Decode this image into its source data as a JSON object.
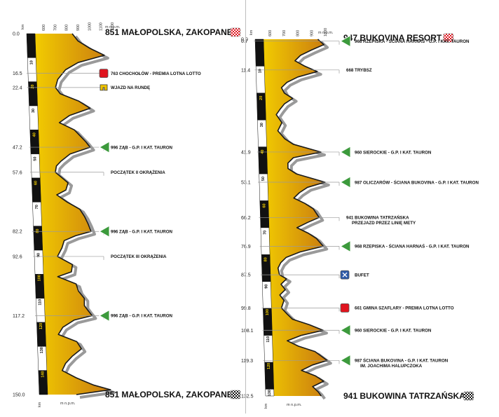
{
  "colors": {
    "profile_top": "#f4d000",
    "profile_bottom": "#c97a10",
    "shadow": "#9a9a9a",
    "outline": "#1a1a1a",
    "mountain_icon": "#3c9a3c",
    "sprint_icon": "#e0141e",
    "feed_icon": "#2d5aa8",
    "bonus_icon": "#f0c400"
  },
  "chart_data": [
    {
      "type": "area",
      "title": "",
      "xlabel": "km",
      "ylabel": "m n.p.m.",
      "ylim": [
        600,
        1200
      ],
      "xlim": [
        0,
        150
      ],
      "altitude_ticks": [
        "600",
        "700",
        "800",
        "900",
        "1000",
        "1100",
        "1200"
      ],
      "km_markers": [
        "0",
        "10",
        "20",
        "30",
        "40",
        "50",
        "60",
        "70",
        "80",
        "90",
        "100",
        "110",
        "120",
        "130",
        "140",
        "150"
      ],
      "start": {
        "km": "0.0",
        "label": "851 MAŁOPOLSKA, ZAKOPANE",
        "icon": "checkered-red"
      },
      "finish": {
        "km": "150.0",
        "label": "851 MAŁOPOLSKA, ZAKOPANE",
        "icon": "checkered-black"
      },
      "profile": [
        [
          0,
          851
        ],
        [
          3,
          900
        ],
        [
          6,
          1000
        ],
        [
          9,
          1130
        ],
        [
          12,
          900
        ],
        [
          15,
          790
        ],
        [
          16.5,
          763
        ],
        [
          19,
          720
        ],
        [
          22.4,
          700
        ],
        [
          25,
          740
        ],
        [
          28,
          900
        ],
        [
          31,
          1000
        ],
        [
          34,
          820
        ],
        [
          37,
          730
        ],
        [
          40,
          860
        ],
        [
          43,
          920
        ],
        [
          45,
          960
        ],
        [
          47.2,
          996
        ],
        [
          50,
          820
        ],
        [
          53,
          740
        ],
        [
          55,
          700
        ],
        [
          57.6,
          690
        ],
        [
          60,
          750
        ],
        [
          62,
          800
        ],
        [
          65,
          780
        ],
        [
          67,
          700
        ],
        [
          70,
          790
        ],
        [
          73,
          900
        ],
        [
          76,
          940
        ],
        [
          79,
          970
        ],
        [
          82.2,
          996
        ],
        [
          84,
          860
        ],
        [
          86,
          760
        ],
        [
          89,
          740
        ],
        [
          92.6,
          700
        ],
        [
          96,
          830
        ],
        [
          99,
          820
        ],
        [
          101,
          700
        ],
        [
          104,
          860
        ],
        [
          107,
          880
        ],
        [
          110,
          930
        ],
        [
          113,
          930
        ],
        [
          115,
          960
        ],
        [
          117.2,
          996
        ],
        [
          119,
          840
        ],
        [
          122,
          740
        ],
        [
          125,
          700
        ],
        [
          128,
          860
        ],
        [
          131,
          900
        ],
        [
          134,
          820
        ],
        [
          137,
          760
        ],
        [
          140,
          730
        ],
        [
          143,
          850
        ],
        [
          146,
          1000
        ],
        [
          148,
          1150
        ],
        [
          150,
          851
        ]
      ],
      "annotations": [
        {
          "km": "16.5",
          "label": "763 CHOCHOŁÓW - PREMIA LOTNA LOTTO",
          "icon": "sprint"
        },
        {
          "km": "22.4",
          "label": "WJAZD NA RUNDĘ",
          "icon": "bonus"
        },
        {
          "km": "47.2",
          "label": "996 ZĄB - G.P. I KAT. TAURON",
          "icon": "mountain"
        },
        {
          "km": "57.6",
          "label": "POCZĄTEK II OKRĄŻENIA",
          "icon": ""
        },
        {
          "km": "82.2",
          "label": "996 ZĄB - G.P. I KAT. TAURON",
          "icon": "mountain"
        },
        {
          "km": "92.6",
          "label": "POCZĄTEK III OKRĄŻENIA",
          "icon": ""
        },
        {
          "km": "117.2",
          "label": "996 ZĄB - G.P. I KAT. TAURON",
          "icon": "mountain"
        }
      ]
    },
    {
      "type": "area",
      "title": "",
      "xlabel": "km",
      "ylabel": "m n.p.m.",
      "ylim": [
        600,
        1000
      ],
      "xlim": [
        0,
        132.5
      ],
      "altitude_ticks": [
        "600",
        "700",
        "800",
        "900",
        "1000"
      ],
      "km_markers": [
        "0",
        "10",
        "20",
        "30",
        "40",
        "50",
        "60",
        "70",
        "80",
        "90",
        "100",
        "110",
        "120",
        "130"
      ],
      "start": {
        "km": "0.0",
        "label": "947 BUKOVINA RESORT",
        "icon": "checkered-red"
      },
      "finish": {
        "km": "132.5",
        "label": "941 BUKOWINA TATRZAŃSKA",
        "icon": "checkered-black"
      },
      "profile": [
        [
          0,
          947
        ],
        [
          2,
          990
        ],
        [
          4,
          900
        ],
        [
          6,
          820
        ],
        [
          8,
          780
        ],
        [
          10,
          850
        ],
        [
          12,
          940
        ],
        [
          14,
          800
        ],
        [
          16,
          720
        ],
        [
          18,
          680
        ],
        [
          20,
          700
        ],
        [
          22,
          760
        ],
        [
          24,
          700
        ],
        [
          26,
          668
        ],
        [
          28,
          640
        ],
        [
          31,
          680
        ],
        [
          34,
          650
        ],
        [
          37,
          700
        ],
        [
          39,
          760
        ],
        [
          41.9,
          960
        ],
        [
          44,
          760
        ],
        [
          46,
          720
        ],
        [
          48,
          720
        ],
        [
          50,
          780
        ],
        [
          53.1,
          987
        ],
        [
          55,
          860
        ],
        [
          57,
          800
        ],
        [
          59,
          760
        ],
        [
          61,
          840
        ],
        [
          63,
          900
        ],
        [
          66.2,
          941
        ],
        [
          68,
          860
        ],
        [
          70,
          780
        ],
        [
          72,
          860
        ],
        [
          74,
          920
        ],
        [
          76.9,
          968
        ],
        [
          79,
          800
        ],
        [
          81,
          700
        ],
        [
          83,
          660
        ],
        [
          85,
          640
        ],
        [
          87.5,
          650
        ],
        [
          89,
          700
        ],
        [
          91,
          660
        ],
        [
          93,
          690
        ],
        [
          95,
          650
        ],
        [
          97,
          680
        ],
        [
          99.8,
          661
        ],
        [
          102,
          700
        ],
        [
          104,
          740
        ],
        [
          106,
          860
        ],
        [
          108.1,
          960
        ],
        [
          110,
          800
        ],
        [
          112,
          700
        ],
        [
          114,
          780
        ],
        [
          116,
          900
        ],
        [
          119.3,
          987
        ],
        [
          121,
          880
        ],
        [
          123,
          800
        ],
        [
          125,
          900
        ],
        [
          127,
          960
        ],
        [
          129,
          880
        ],
        [
          131,
          920
        ],
        [
          132.5,
          941
        ]
      ],
      "annotations": [
        {
          "km": "0.7",
          "label": "968 RZEPISKA - ŚCIANA HARNAŚ - G.P. I KAT. TAURON",
          "icon": "mountain"
        },
        {
          "km": "11.4",
          "label": "668 TRYBSZ",
          "icon": ""
        },
        {
          "km": "41.9",
          "label": "960 SIEROCKIE - G.P. I KAT. TAURON",
          "icon": "mountain"
        },
        {
          "km": "53.1",
          "label": "987 OLICZARÓW - ŚCIANA BUKOVINA - G.P. I KAT. TAURON",
          "icon": "mountain"
        },
        {
          "km": "66.2",
          "label": "941 BUKOWINA TATRZAŃSKA",
          "label2": "PRZEJAZD PRZEZ LINIĘ METY",
          "icon": ""
        },
        {
          "km": "76.9",
          "label": "968 RZEPISKA - ŚCIANA HARNAŚ - G.P. I KAT. TAURON",
          "icon": "mountain"
        },
        {
          "km": "87.5",
          "label": "BUFET",
          "icon": "feed"
        },
        {
          "km": "99.8",
          "label": "661 GMINA SZAFLARY - PREMIA LOTNA LOTTO",
          "icon": "sprint"
        },
        {
          "km": "108.1",
          "label": "960 SIEROCKIE - G.P. I KAT. TAURON",
          "icon": "mountain"
        },
        {
          "km": "119.3",
          "label": "987 ŚCIANA BUKOVINA - G.P. I KAT. TAURON",
          "label2": "IM. JOACHIMA HALUPCZOKA",
          "icon": "mountain"
        }
      ]
    }
  ]
}
